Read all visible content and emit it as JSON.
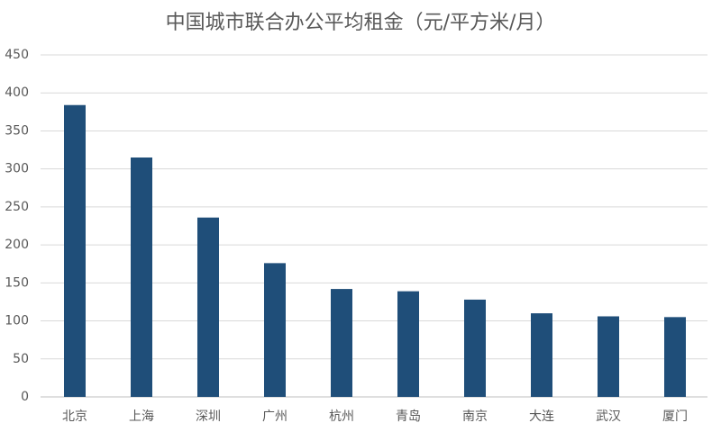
{
  "chart_data": {
    "type": "bar",
    "title": "中国城市联合办公平均租金（元/平方米/月）",
    "categories": [
      "北京",
      "上海",
      "深圳",
      "广州",
      "杭州",
      "青岛",
      "南京",
      "大连",
      "武汉",
      "厦门"
    ],
    "values": [
      384,
      315,
      236,
      176,
      142,
      139,
      128,
      110,
      106,
      105
    ],
    "color": "#1f4e79",
    "ylim": [
      0,
      450
    ],
    "yticks": [
      0,
      50,
      100,
      150,
      200,
      250,
      300,
      350,
      400,
      450
    ],
    "grid": true
  }
}
